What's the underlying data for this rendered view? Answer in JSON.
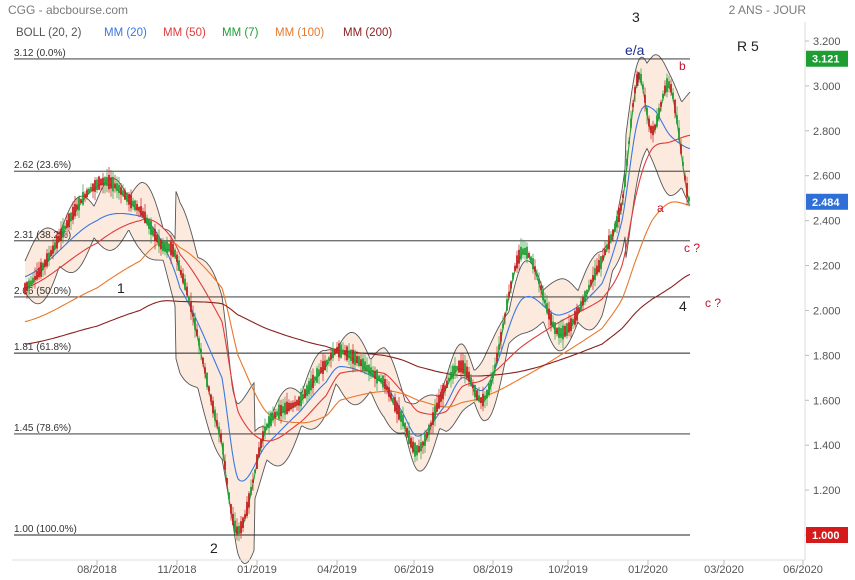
{
  "header": {
    "source": "CGG - abcbourse.com",
    "period": "2 ANS - JOUR"
  },
  "chart_data": {
    "type": "line",
    "title": "",
    "xlabel": "",
    "ylabel": "",
    "y_scale": "linear",
    "ylim": [
      0.95,
      3.25
    ],
    "y_ticks": [
      1.0,
      1.2,
      1.4,
      1.6,
      1.8,
      2.0,
      2.2,
      2.4,
      2.6,
      2.8,
      3.0,
      3.2
    ],
    "y_tick_labels": [
      "1.000",
      "1.200",
      "1.400",
      "1.600",
      "1.800",
      "2.000",
      "2.200",
      "2.400",
      "2.600",
      "2.800",
      "3.000",
      "3.200"
    ],
    "x_tick_labels": [
      "08/2018",
      "11/2018",
      "01/2019",
      "04/2019",
      "06/2019",
      "08/2019",
      "10/2019",
      "01/2020",
      "03/2020",
      "06/2020"
    ],
    "grid": false,
    "legend_placement": "top-left",
    "legend": [
      {
        "label": "BOLL (20, 2)",
        "color": "#555555"
      },
      {
        "label": "MM (20)",
        "color": "#3a78e0"
      },
      {
        "label": "MM (50)",
        "color": "#e03b3b"
      },
      {
        "label": "MM (7)",
        "color": "#1e9e32"
      },
      {
        "label": "MM (100)",
        "color": "#e8782a"
      },
      {
        "label": "MM (200)",
        "color": "#8a2020"
      }
    ],
    "price_series": {
      "name": "CGG",
      "dates": [
        "07/2018",
        "08/2018",
        "09/2018",
        "10/2018",
        "11/2018",
        "12/2018",
        "12/2018",
        "01/2019",
        "02/2019",
        "03/2019",
        "04/2019",
        "05/2019",
        "05/2019",
        "06/2019",
        "07/2019",
        "07/2019",
        "08/2019",
        "09/2019",
        "10/2019",
        "11/2019",
        "12/2019",
        "12/2019",
        "01/2020",
        "02/2020",
        "02/2020"
      ],
      "values": [
        2.1,
        2.56,
        2.45,
        2.3,
        2.18,
        1.42,
        1.02,
        1.48,
        1.6,
        1.76,
        1.82,
        1.68,
        1.52,
        1.38,
        1.66,
        1.75,
        1.62,
        2.26,
        1.9,
        2.22,
        2.48,
        3.04,
        2.8,
        3.0,
        2.48
      ]
    },
    "moving_averages": [
      {
        "name": "MM (20)",
        "values": [
          2.15,
          2.4,
          2.42,
          2.32,
          2.1,
          1.7,
          1.25,
          1.4,
          1.55,
          1.68,
          1.75,
          1.68,
          1.55,
          1.44,
          1.58,
          1.7,
          1.66,
          2.05,
          1.98,
          2.12,
          2.4,
          2.85,
          2.9,
          2.78,
          2.72
        ]
      },
      {
        "name": "MM (50)",
        "values": [
          2.1,
          2.3,
          2.4,
          2.38,
          2.25,
          1.95,
          1.55,
          1.42,
          1.5,
          1.62,
          1.72,
          1.72,
          1.64,
          1.55,
          1.55,
          1.66,
          1.7,
          1.84,
          1.95,
          2.05,
          2.2,
          2.55,
          2.72,
          2.75,
          2.78
        ]
      },
      {
        "name": "MM (100)",
        "values": [
          1.95,
          2.1,
          2.22,
          2.3,
          2.28,
          2.1,
          1.8,
          1.55,
          1.5,
          1.53,
          1.6,
          1.64,
          1.63,
          1.6,
          1.57,
          1.59,
          1.62,
          1.7,
          1.8,
          1.92,
          2.05,
          2.25,
          2.4,
          2.48,
          2.47
        ]
      },
      {
        "name": "MM (200)",
        "values": [
          1.85,
          1.93,
          2.0,
          2.04,
          2.04,
          2.03,
          1.98,
          1.92,
          1.87,
          1.84,
          1.82,
          1.8,
          1.78,
          1.75,
          1.72,
          1.71,
          1.71,
          1.73,
          1.78,
          1.85,
          1.92,
          2.0,
          2.05,
          2.1,
          2.16
        ]
      }
    ],
    "fibonacci_levels": [
      {
        "label": "3.12  (0.0%)",
        "value": 3.12
      },
      {
        "label": "2.62  (23.6%)",
        "value": 2.62
      },
      {
        "label": "2.31  (38.2%)",
        "value": 2.31
      },
      {
        "label": "2.06  (50.0%)",
        "value": 2.06
      },
      {
        "label": "1.81  (61.8%)",
        "value": 1.81
      },
      {
        "label": "1.45  (78.6%)",
        "value": 1.45
      },
      {
        "label": "1.00  (100.0%)",
        "value": 1.0
      }
    ],
    "annotations": [
      {
        "text": "R 5",
        "style": "wave"
      },
      {
        "text": "3",
        "style": "wave"
      },
      {
        "text": "e/a",
        "style": "wave-b"
      },
      {
        "text": "b",
        "style": "wave-r"
      },
      {
        "text": "a",
        "style": "wave-r"
      },
      {
        "text": "c ?",
        "style": "wave-r"
      },
      {
        "text": "c ?",
        "style": "wave-r"
      },
      {
        "text": "4",
        "style": "wave"
      },
      {
        "text": "1",
        "style": "wave"
      },
      {
        "text": "2",
        "style": "wave"
      }
    ],
    "badges": [
      {
        "text": "3.121",
        "value": 3.121,
        "color": "#1e9e32"
      },
      {
        "text": "2.484",
        "value": 2.484,
        "color": "#2f6fd6"
      },
      {
        "text": "1.000",
        "value": 1.0,
        "color": "#d41a1a"
      }
    ]
  }
}
